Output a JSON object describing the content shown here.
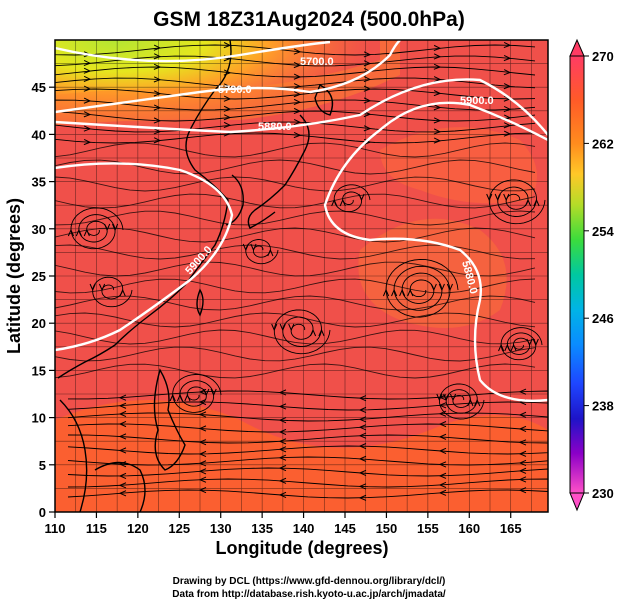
{
  "title": "GSM 18Z31Aug2024 (500.0hPa)",
  "xlabel": "Longitude (degrees)",
  "ylabel": "Latitude (degrees)",
  "credit_line1": "Drawing by DCL (https://www.gfd-dennou.org/library/dcl/)",
  "credit_line2": "Data from http://database.rish.kyoto-u.ac.jp/arch/jmadata/",
  "x_ticks": [
    "110",
    "115",
    "120",
    "125",
    "130",
    "135",
    "140",
    "145",
    "150",
    "155",
    "160",
    "165"
  ],
  "y_ticks": [
    "0",
    "5",
    "10",
    "15",
    "20",
    "25",
    "30",
    "35",
    "40",
    "45"
  ],
  "colorbar": {
    "ticks": [
      "270",
      "262",
      "254",
      "246",
      "238",
      "230"
    ],
    "colors": [
      "#ff3c64",
      "#ff5a28",
      "#ff7814",
      "#ffa028",
      "#ffc828",
      "#b4dc28",
      "#46dc32",
      "#00c8a0",
      "#00b4dc",
      "#0096ff",
      "#1e50ff",
      "#1e1ed2",
      "#5a0ac8",
      "#a000c8",
      "#e61ec8",
      "#ff50c8"
    ]
  },
  "contour_labels": [
    "5700.0",
    "5790.0",
    "5880.0",
    "5900.0",
    "5900.0",
    "5880.0"
  ],
  "palette": {
    "ocean_base": "#f0504a",
    "warm_band": "#ff6a2a",
    "north_green": "#9adc3c",
    "north_yellow": "#f0e020",
    "coast": "#000000",
    "contour": "#ffffff"
  }
}
